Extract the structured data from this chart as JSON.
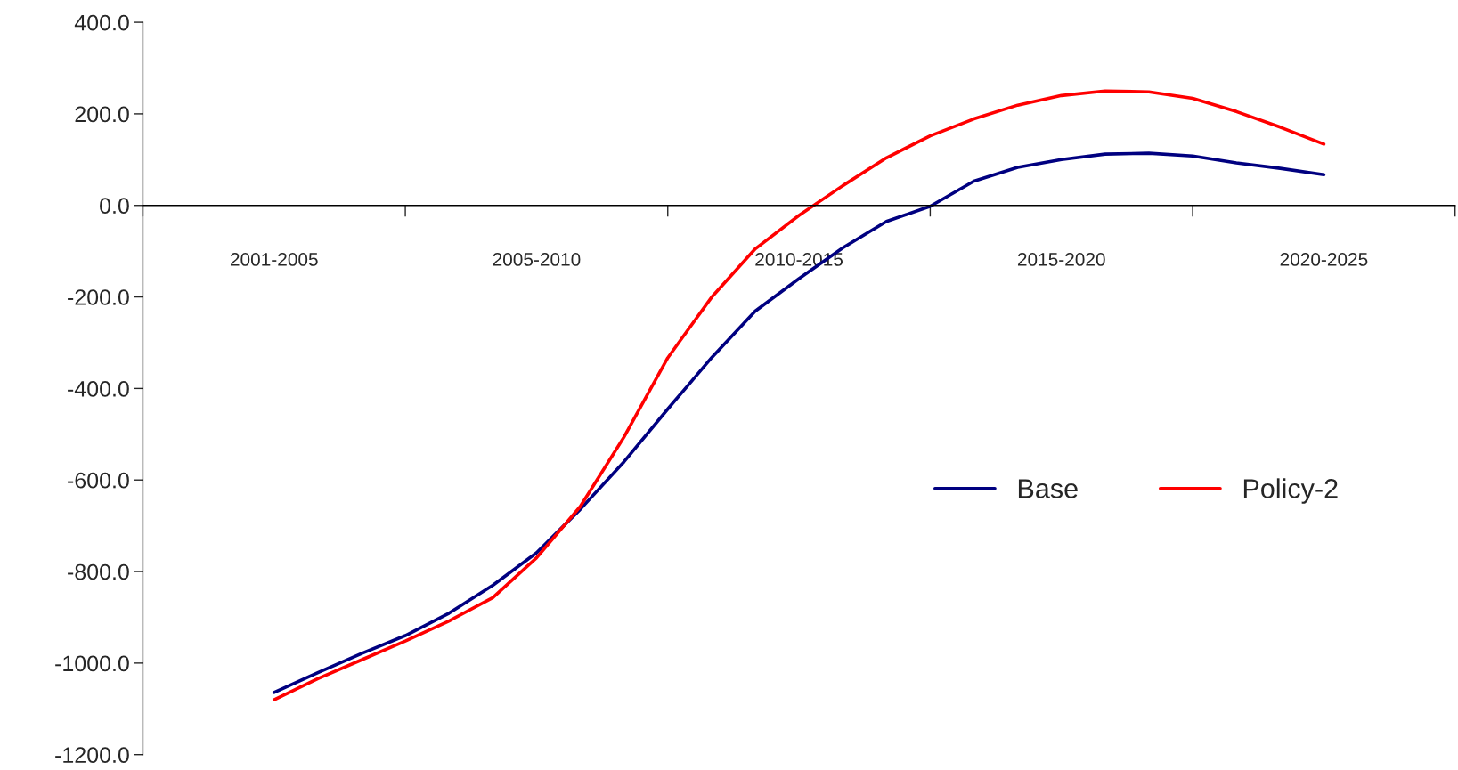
{
  "chart_data": {
    "type": "line",
    "categories": [
      "2001-2005",
      null,
      null,
      null,
      null,
      null,
      "2005-2010",
      null,
      null,
      null,
      null,
      null,
      "2010-2015",
      null,
      null,
      null,
      null,
      null,
      "2015-2020",
      null,
      null,
      null,
      null,
      null,
      "2020-2025"
    ],
    "series": [
      {
        "name": "Base",
        "color": "#000080",
        "values": [
          -1064,
          -1021,
          -979,
          -940,
          -891,
          -830,
          -759,
          -664,
          -560,
          -445,
          -333,
          -231,
          -160,
          -93,
          -35,
          -2,
          53,
          83,
          100,
          112,
          114,
          108,
          93,
          81,
          67
        ]
      },
      {
        "name": "Policy-2",
        "color": "#ff0000",
        "values": [
          -1080,
          -1034,
          -993,
          -952,
          -908,
          -857,
          -770,
          -658,
          -506,
          -333,
          -201,
          -95,
          -22,
          43,
          104,
          152,
          189,
          219,
          240,
          250,
          248,
          234,
          205,
          171,
          134
        ]
      }
    ],
    "ylim": [
      -1200,
      400
    ],
    "yticks": [
      {
        "value": -1200,
        "label": "-1200.0"
      },
      {
        "value": -1000,
        "label": "-1000.0"
      },
      {
        "value": -800,
        "label": "-800.0"
      },
      {
        "value": -600,
        "label": "-600.0"
      },
      {
        "value": -400,
        "label": "-400.0"
      },
      {
        "value": -200,
        "label": "-200.0"
      },
      {
        "value": 0,
        "label": "0.0"
      },
      {
        "value": 200,
        "label": "200.0"
      },
      {
        "value": 400,
        "label": "400.0"
      }
    ],
    "grid": false,
    "legend": "right",
    "marker": "none",
    "line_style": "solid"
  }
}
